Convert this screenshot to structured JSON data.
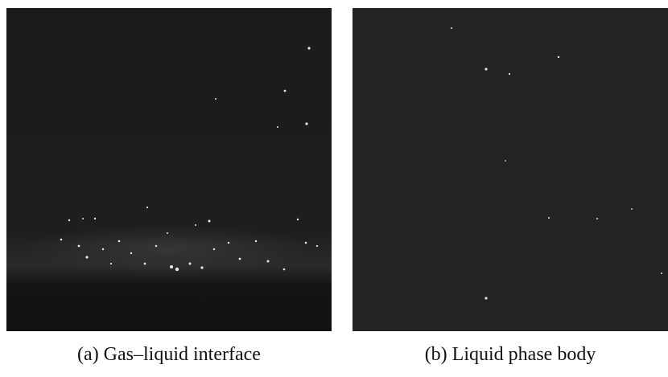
{
  "figure": {
    "panels": [
      {
        "caption": "(a) Gas–liquid interface"
      },
      {
        "caption": "(b) Liquid phase body"
      }
    ]
  }
}
